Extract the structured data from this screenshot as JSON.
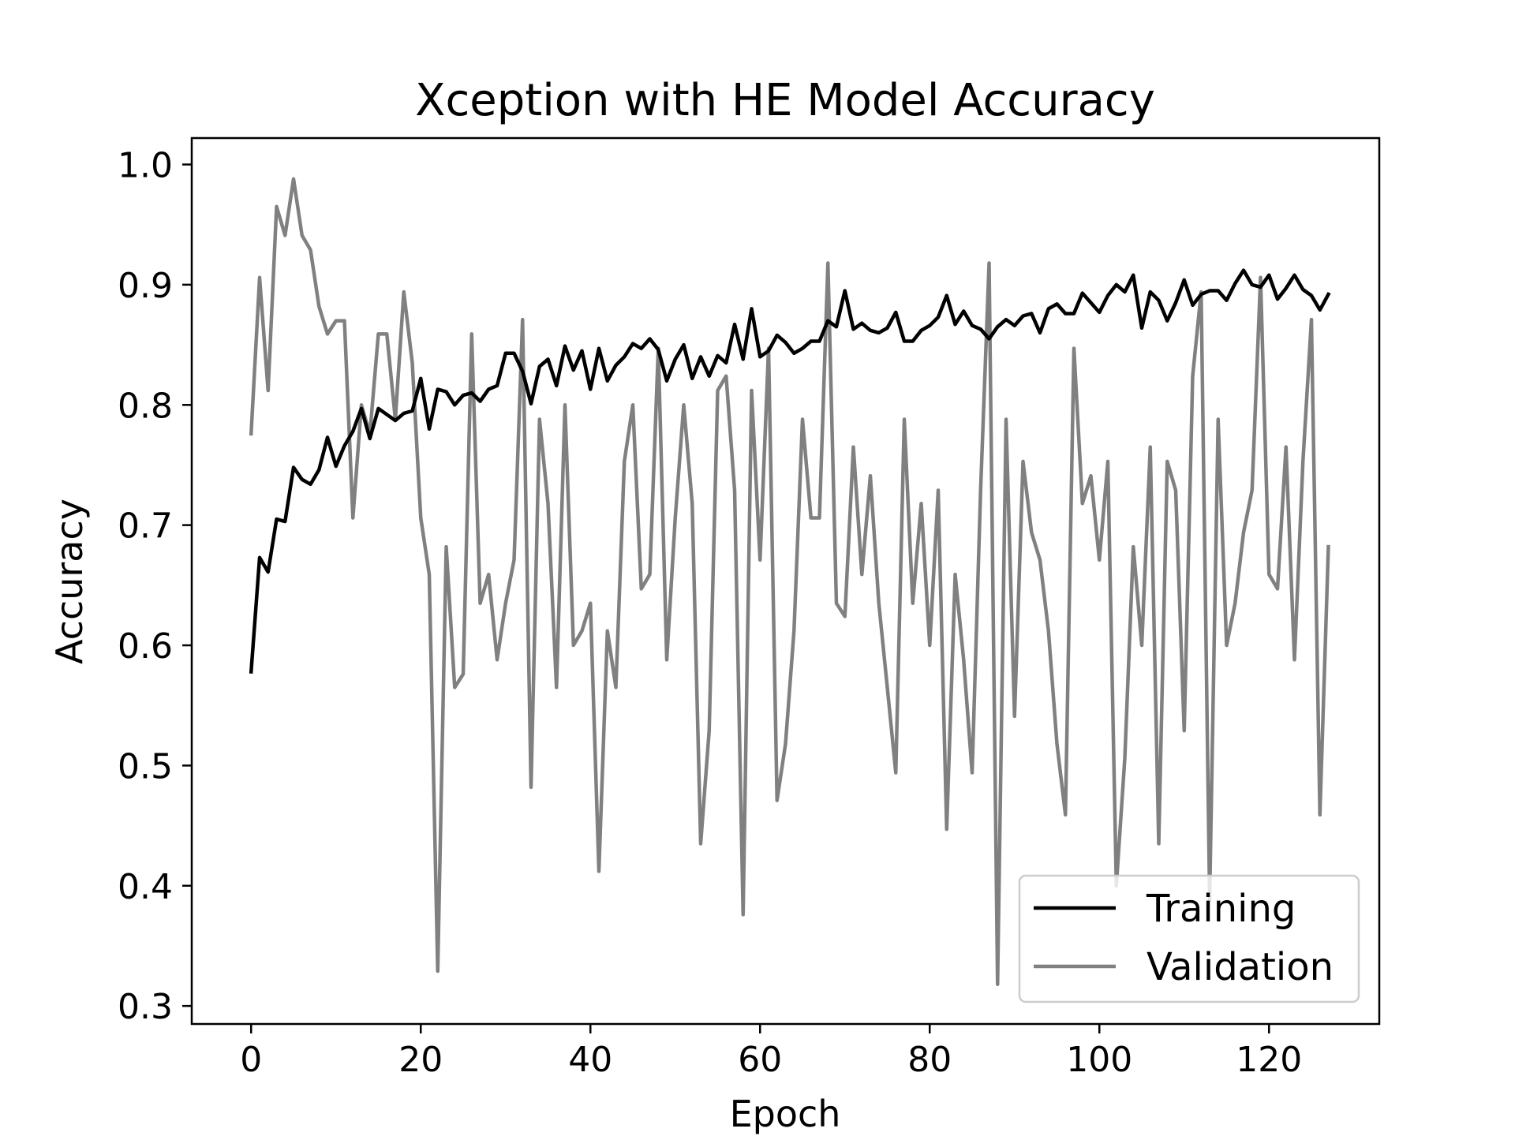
{
  "chart_data": {
    "type": "line",
    "title": "Xception with HE Model Accuracy",
    "xlabel": "Epoch",
    "ylabel": "Accuracy",
    "xlim": [
      -7,
      133
    ],
    "ylim": [
      0.285,
      1.022
    ],
    "xticks": [
      0,
      20,
      40,
      60,
      80,
      100,
      120
    ],
    "yticks": [
      0.3,
      0.4,
      0.5,
      0.6,
      0.7,
      0.8,
      0.9,
      1.0
    ],
    "xtick_labels": [
      "0",
      "20",
      "40",
      "60",
      "80",
      "100",
      "120"
    ],
    "ytick_labels": [
      "0.3",
      "0.4",
      "0.5",
      "0.6",
      "0.7",
      "0.8",
      "0.9",
      "1.0"
    ],
    "grid": false,
    "legend_position": "lower right",
    "series": [
      {
        "name": "Training",
        "color": "#000000",
        "values": [
          0.578,
          0.673,
          0.661,
          0.705,
          0.703,
          0.748,
          0.738,
          0.734,
          0.746,
          0.773,
          0.749,
          0.766,
          0.778,
          0.797,
          0.772,
          0.797,
          0.792,
          0.787,
          0.793,
          0.795,
          0.822,
          0.78,
          0.813,
          0.811,
          0.8,
          0.808,
          0.81,
          0.803,
          0.813,
          0.816,
          0.843,
          0.843,
          0.828,
          0.801,
          0.832,
          0.838,
          0.816,
          0.849,
          0.829,
          0.845,
          0.813,
          0.847,
          0.82,
          0.833,
          0.84,
          0.851,
          0.847,
          0.855,
          0.846,
          0.82,
          0.838,
          0.85,
          0.822,
          0.84,
          0.824,
          0.841,
          0.835,
          0.867,
          0.838,
          0.88,
          0.84,
          0.845,
          0.858,
          0.852,
          0.843,
          0.847,
          0.853,
          0.853,
          0.87,
          0.865,
          0.895,
          0.863,
          0.868,
          0.862,
          0.86,
          0.864,
          0.877,
          0.853,
          0.853,
          0.862,
          0.866,
          0.873,
          0.891,
          0.867,
          0.878,
          0.866,
          0.863,
          0.855,
          0.865,
          0.871,
          0.866,
          0.874,
          0.876,
          0.86,
          0.88,
          0.884,
          0.876,
          0.876,
          0.893,
          0.885,
          0.877,
          0.891,
          0.9,
          0.894,
          0.908,
          0.864,
          0.894,
          0.887,
          0.87,
          0.885,
          0.904,
          0.883,
          0.892,
          0.895,
          0.895,
          0.887,
          0.901,
          0.912,
          0.9,
          0.898,
          0.908,
          0.888,
          0.897,
          0.908,
          0.896,
          0.891,
          0.879,
          0.892
        ]
      },
      {
        "name": "Validation",
        "color": "#808080",
        "values": [
          0.776,
          0.906,
          0.812,
          0.965,
          0.941,
          0.988,
          0.941,
          0.929,
          0.882,
          0.859,
          0.87,
          0.87,
          0.706,
          0.8,
          0.776,
          0.859,
          0.859,
          0.788,
          0.894,
          0.835,
          0.706,
          0.659,
          0.329,
          0.682,
          0.565,
          0.576,
          0.859,
          0.635,
          0.659,
          0.588,
          0.635,
          0.671,
          0.871,
          0.482,
          0.788,
          0.718,
          0.565,
          0.8,
          0.6,
          0.612,
          0.635,
          0.412,
          0.612,
          0.565,
          0.753,
          0.8,
          0.647,
          0.659,
          0.847,
          0.588,
          0.706,
          0.8,
          0.718,
          0.435,
          0.529,
          0.812,
          0.824,
          0.729,
          0.376,
          0.812,
          0.671,
          0.847,
          0.471,
          0.518,
          0.612,
          0.788,
          0.706,
          0.706,
          0.918,
          0.635,
          0.624,
          0.765,
          0.659,
          0.741,
          0.635,
          0.565,
          0.494,
          0.788,
          0.635,
          0.718,
          0.6,
          0.729,
          0.447,
          0.659,
          0.588,
          0.494,
          0.729,
          0.918,
          0.318,
          0.788,
          0.541,
          0.753,
          0.694,
          0.671,
          0.612,
          0.518,
          0.459,
          0.847,
          0.718,
          0.741,
          0.671,
          0.753,
          0.4,
          0.506,
          0.682,
          0.6,
          0.765,
          0.435,
          0.753,
          0.729,
          0.529,
          0.824,
          0.894,
          0.388,
          0.788,
          0.6,
          0.635,
          0.694,
          0.729,
          0.906,
          0.659,
          0.647,
          0.765,
          0.588,
          0.753,
          0.871,
          0.459,
          0.682
        ]
      }
    ]
  }
}
